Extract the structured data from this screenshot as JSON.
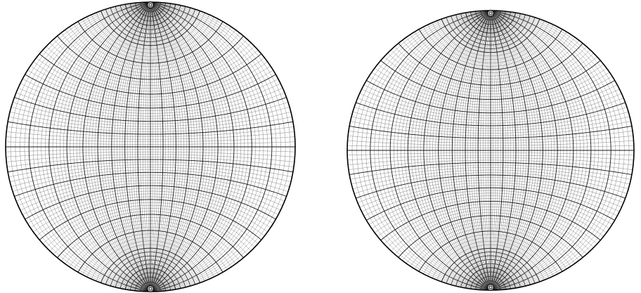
{
  "figure": {
    "panels": [
      {
        "id": "left-net",
        "pole_marks": [
          "north",
          "south"
        ]
      },
      {
        "id": "right-net",
        "pole_marks": [
          "north",
          "south"
        ]
      }
    ],
    "colors": {
      "background": "#ffffff",
      "major_line": "#1a1a1a",
      "minor_line": "#6a6a6a",
      "fine_dots": "#9a9a9a",
      "outline": "#000000"
    }
  }
}
